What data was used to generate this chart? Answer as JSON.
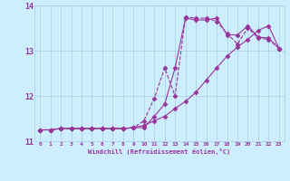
{
  "xlabel": "Windchill (Refroidissement éolien,°C)",
  "bg_color": "#cceeff",
  "line_color": "#993399",
  "grid_color": "#aaccdd",
  "xlim": [
    -0.5,
    23.5
  ],
  "ylim": [
    11.0,
    14.0
  ],
  "yticks": [
    11,
    12,
    13,
    14
  ],
  "xticks": [
    0,
    1,
    2,
    3,
    4,
    5,
    6,
    7,
    8,
    9,
    10,
    11,
    12,
    13,
    14,
    15,
    16,
    17,
    18,
    19,
    20,
    21,
    22,
    23
  ],
  "line1_x": [
    0,
    1,
    2,
    3,
    4,
    5,
    6,
    7,
    8,
    9,
    10,
    11,
    12,
    13,
    14,
    15,
    16,
    17,
    18,
    19,
    20,
    21,
    22,
    23
  ],
  "line1_y": [
    11.25,
    11.25,
    11.28,
    11.28,
    11.28,
    11.28,
    11.28,
    11.28,
    11.28,
    11.3,
    11.3,
    11.55,
    11.82,
    12.62,
    13.72,
    13.68,
    13.68,
    13.72,
    13.35,
    13.35,
    13.55,
    13.3,
    13.28,
    13.05
  ],
  "line2_x": [
    0,
    1,
    2,
    3,
    4,
    5,
    6,
    7,
    8,
    9,
    10,
    11,
    12,
    13,
    14,
    15,
    16,
    17,
    18,
    19,
    20,
    21,
    22,
    23
  ],
  "line2_y": [
    11.25,
    11.25,
    11.28,
    11.28,
    11.28,
    11.28,
    11.28,
    11.28,
    11.28,
    11.3,
    11.45,
    11.95,
    12.62,
    12.0,
    13.75,
    13.72,
    13.72,
    13.65,
    13.38,
    13.15,
    13.5,
    13.28,
    13.25,
    13.05
  ],
  "line3_x": [
    0,
    1,
    2,
    3,
    4,
    5,
    6,
    7,
    8,
    9,
    10,
    11,
    12,
    13,
    14,
    15,
    16,
    17,
    18,
    19,
    20,
    21,
    22,
    23
  ],
  "line3_y": [
    11.25,
    11.25,
    11.28,
    11.28,
    11.28,
    11.28,
    11.28,
    11.28,
    11.28,
    11.3,
    11.35,
    11.45,
    11.55,
    11.72,
    11.88,
    12.08,
    12.35,
    12.62,
    12.88,
    13.08,
    13.25,
    13.45,
    13.55,
    13.05
  ]
}
